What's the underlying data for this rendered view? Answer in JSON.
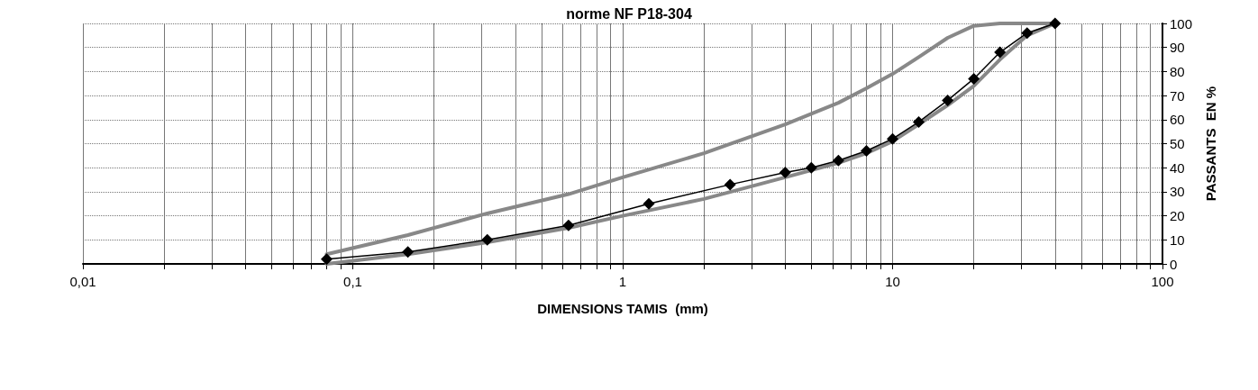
{
  "chart_data": {
    "type": "line",
    "title": "norme NF P18-304",
    "xlabel": "DIMENSIONS TAMIS  (mm)",
    "ylabel": "PASSANTS  EN %",
    "log": "x",
    "xlim": [
      0.01,
      100
    ],
    "ylim": [
      0,
      100
    ],
    "xticks": [
      {
        "value": 0.01,
        "label": "0,01"
      },
      {
        "value": 0.02,
        "label": null
      },
      {
        "value": 0.03,
        "label": null
      },
      {
        "value": 0.04,
        "label": null
      },
      {
        "value": 0.05,
        "label": null
      },
      {
        "value": 0.06,
        "label": null
      },
      {
        "value": 0.07,
        "label": null
      },
      {
        "value": 0.08,
        "label": null
      },
      {
        "value": 0.09,
        "label": null
      },
      {
        "value": 0.1,
        "label": "0,1"
      },
      {
        "value": 0.2,
        "label": null
      },
      {
        "value": 0.3,
        "label": null
      },
      {
        "value": 0.4,
        "label": null
      },
      {
        "value": 0.5,
        "label": null
      },
      {
        "value": 0.6,
        "label": null
      },
      {
        "value": 0.7,
        "label": null
      },
      {
        "value": 0.8,
        "label": null
      },
      {
        "value": 0.9,
        "label": null
      },
      {
        "value": 1,
        "label": "1"
      },
      {
        "value": 2,
        "label": null
      },
      {
        "value": 3,
        "label": null
      },
      {
        "value": 4,
        "label": null
      },
      {
        "value": 5,
        "label": null
      },
      {
        "value": 6,
        "label": null
      },
      {
        "value": 7,
        "label": null
      },
      {
        "value": 8,
        "label": null
      },
      {
        "value": 9,
        "label": null
      },
      {
        "value": 10,
        "label": "10"
      },
      {
        "value": 20,
        "label": null
      },
      {
        "value": 30,
        "label": null
      },
      {
        "value": 40,
        "label": null
      },
      {
        "value": 50,
        "label": null
      },
      {
        "value": 60,
        "label": null
      },
      {
        "value": 70,
        "label": null
      },
      {
        "value": 80,
        "label": null
      },
      {
        "value": 90,
        "label": null
      },
      {
        "value": 100,
        "label": "100"
      }
    ],
    "yticks": [
      0,
      10,
      20,
      30,
      40,
      50,
      60,
      70,
      80,
      90,
      100
    ],
    "grid": true,
    "series": [
      {
        "color": "#888888",
        "marker": "none",
        "x": [
          0.08,
          0.16,
          0.315,
          0.63,
          1,
          2,
          4,
          6.3,
          8,
          10,
          12.5,
          16,
          20,
          25,
          40
        ],
        "values": [
          4,
          12,
          21,
          29,
          36,
          46,
          58,
          67,
          73,
          79,
          86,
          94,
          99,
          100,
          100
        ]
      },
      {
        "color": "#888888",
        "marker": "none",
        "x": [
          0.08,
          0.16,
          0.315,
          0.63,
          1,
          2,
          4,
          6.3,
          8,
          10,
          12.5,
          16,
          20,
          25,
          31.5,
          40
        ],
        "values": [
          0,
          4,
          9,
          15,
          20,
          27,
          36,
          42,
          46,
          51,
          58,
          66,
          74,
          85,
          95,
          100
        ]
      },
      {
        "color": "#000000",
        "marker": "diamond",
        "x": [
          0.08,
          0.16,
          0.315,
          0.63,
          1.25,
          2.5,
          4,
          5,
          6.3,
          8,
          10,
          12.5,
          16,
          20,
          25,
          31.5,
          40
        ],
        "values": [
          2,
          5,
          10,
          16,
          25,
          33,
          38,
          40,
          43,
          47,
          52,
          59,
          68,
          77,
          88,
          96,
          100
        ]
      }
    ]
  }
}
